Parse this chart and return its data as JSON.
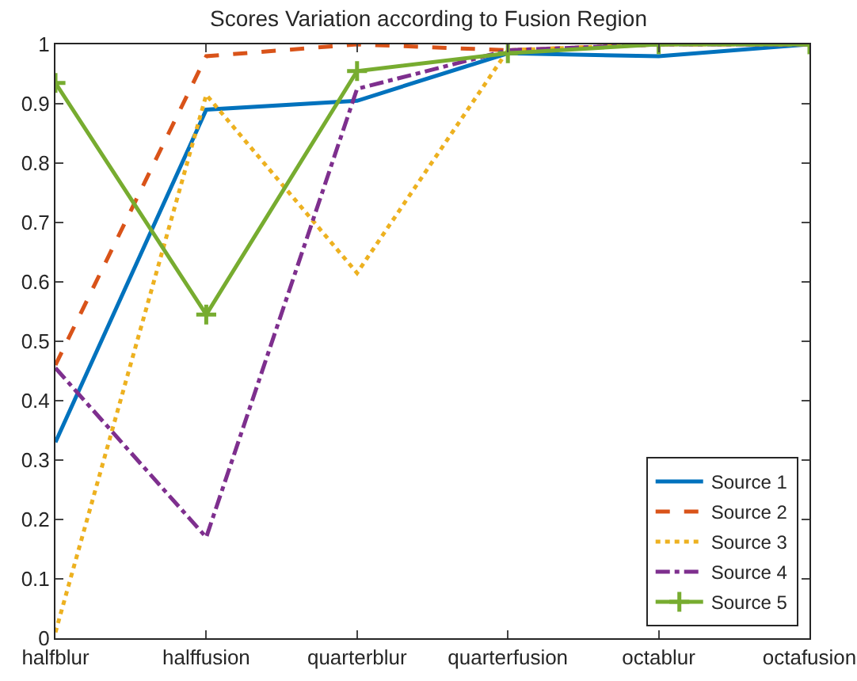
{
  "chart_data": {
    "type": "line",
    "title": "Scores Variation according to Fusion Region",
    "categories": [
      "halfblur",
      "halffusion",
      "quarterblur",
      "quarterfusion",
      "octablur",
      "octafusion"
    ],
    "series": [
      {
        "name": "Source 1",
        "color": "#0072bd",
        "line_style": "solid",
        "marker": "none",
        "values": [
          0.33,
          0.89,
          0.905,
          0.985,
          0.98,
          1.0
        ]
      },
      {
        "name": "Source 2",
        "color": "#d95319",
        "line_style": "dashed",
        "marker": "none",
        "values": [
          0.46,
          0.98,
          1.0,
          0.99,
          1.0,
          1.0
        ]
      },
      {
        "name": "Source 3",
        "color": "#edb120",
        "line_style": "dotted",
        "marker": "none",
        "values": [
          0.01,
          0.915,
          0.615,
          0.99,
          1.0,
          1.0
        ]
      },
      {
        "name": "Source 4",
        "color": "#7e2f8e",
        "line_style": "dashdot",
        "marker": "none",
        "values": [
          0.455,
          0.17,
          0.925,
          0.99,
          1.0,
          1.0
        ]
      },
      {
        "name": "Source 5",
        "color": "#77ac30",
        "line_style": "solid",
        "marker": "cross",
        "values": [
          0.935,
          0.545,
          0.955,
          0.985,
          1.0,
          1.0
        ]
      }
    ],
    "ylim": [
      0,
      1
    ],
    "yticks": [
      0,
      0.1,
      0.2,
      0.3,
      0.4,
      0.5,
      0.6,
      0.7,
      0.8,
      0.9,
      1
    ],
    "grid": false,
    "legend": "bottom right"
  }
}
